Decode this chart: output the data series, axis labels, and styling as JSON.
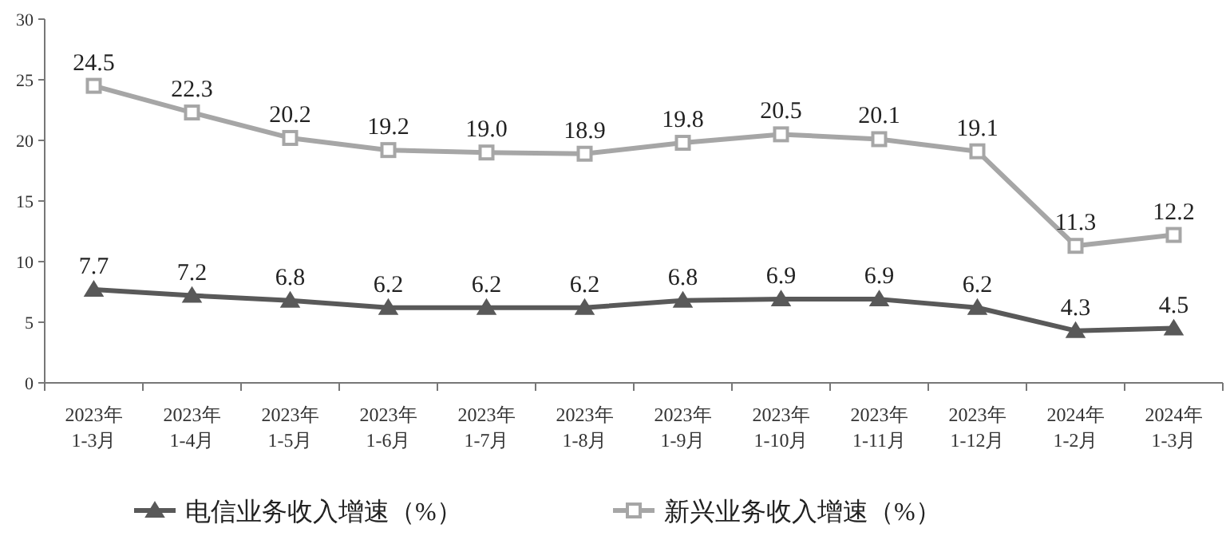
{
  "chart_data": {
    "type": "line",
    "categories": [
      "2023年\n1-3月",
      "2023年\n1-4月",
      "2023年\n1-5月",
      "2023年\n1-6月",
      "2023年\n1-7月",
      "2023年\n1-8月",
      "2023年\n1-9月",
      "2023年\n1-10月",
      "2023年\n1-11月",
      "2023年\n1-12月",
      "2024年\n1-2月",
      "2024年\n1-3月"
    ],
    "series": [
      {
        "name": "电信业务收入增速（%）",
        "color": "#595959",
        "marker": "triangle",
        "values": [
          7.7,
          7.2,
          6.8,
          6.2,
          6.2,
          6.2,
          6.8,
          6.9,
          6.9,
          6.2,
          4.3,
          4.5
        ]
      },
      {
        "name": "新兴业务收入增速（%）",
        "color": "#a6a6a6",
        "marker": "square",
        "values": [
          24.5,
          22.3,
          20.2,
          19.2,
          19.0,
          18.9,
          19.8,
          20.5,
          20.1,
          19.1,
          11.3,
          12.2
        ],
        "value_labels": [
          "24.5",
          "22.3",
          "20.2",
          "19.2",
          "19.0",
          "18.9",
          "19.8",
          "20.5",
          "20.1",
          "19.1",
          "11.3",
          "12.2"
        ]
      }
    ],
    "ylim": [
      0,
      30
    ],
    "yticks": [
      0,
      5,
      10,
      15,
      20,
      25,
      30
    ],
    "grid": false,
    "legend": "bottom",
    "data_labels": true,
    "line_style": "solid"
  }
}
